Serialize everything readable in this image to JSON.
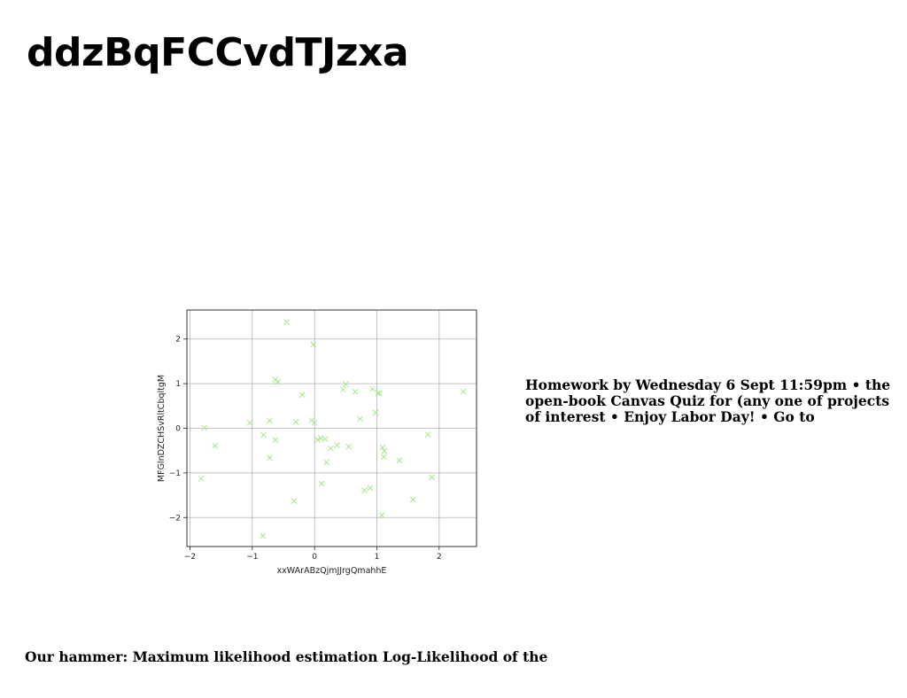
{
  "slide": {
    "title": "ddzBqFCCvdTJzxa",
    "side_text": "Homework by Wednesday 6 Sept 11:59pm • the open-book Canvas Quiz for (any one of projects of interest • Enjoy Labor Day! • Go to",
    "bottom_text": "Our hammer: Maximum likelihood estimation Log-Likelihood of the"
  },
  "chart_data": {
    "type": "scatter",
    "title": "",
    "xlabel": "xxWArABzQjmJJrgQmahhE",
    "ylabel": "MFGlnDZCHSvRltCbqltgM",
    "xlim": [
      -2.05,
      2.6
    ],
    "ylim": [
      -2.65,
      2.65
    ],
    "xticks": [
      -2,
      -1,
      0,
      1,
      2
    ],
    "yticks": [
      -2,
      -1,
      0,
      1,
      2
    ],
    "grid": true,
    "marker": "x",
    "color": "#a6e68a",
    "points": [
      {
        "x": -0.45,
        "y": 2.38
      },
      {
        "x": -0.02,
        "y": 1.88
      },
      {
        "x": -0.63,
        "y": 1.09
      },
      {
        "x": -0.59,
        "y": 1.04
      },
      {
        "x": -0.2,
        "y": 0.75
      },
      {
        "x": 0.5,
        "y": 0.99
      },
      {
        "x": 0.46,
        "y": 0.87
      },
      {
        "x": 0.65,
        "y": 0.82
      },
      {
        "x": 0.93,
        "y": 0.88
      },
      {
        "x": 1.02,
        "y": 0.79
      },
      {
        "x": 1.04,
        "y": 0.78
      },
      {
        "x": 2.39,
        "y": 0.82
      },
      {
        "x": 0.98,
        "y": 0.35
      },
      {
        "x": 0.73,
        "y": 0.21
      },
      {
        "x": -1.77,
        "y": 0.01
      },
      {
        "x": -1.04,
        "y": 0.12
      },
      {
        "x": -0.72,
        "y": 0.17
      },
      {
        "x": -0.3,
        "y": 0.14
      },
      {
        "x": -0.05,
        "y": 0.18
      },
      {
        "x": 0.0,
        "y": 0.12
      },
      {
        "x": -0.82,
        "y": -0.15
      },
      {
        "x": -0.63,
        "y": -0.26
      },
      {
        "x": 0.05,
        "y": -0.26
      },
      {
        "x": 0.1,
        "y": -0.22
      },
      {
        "x": 0.17,
        "y": -0.24
      },
      {
        "x": -1.6,
        "y": -0.39
      },
      {
        "x": 0.26,
        "y": -0.45
      },
      {
        "x": 0.36,
        "y": -0.38
      },
      {
        "x": 0.55,
        "y": -0.41
      },
      {
        "x": 1.09,
        "y": -0.43
      },
      {
        "x": 1.12,
        "y": -0.51
      },
      {
        "x": -0.72,
        "y": -0.66
      },
      {
        "x": 0.19,
        "y": -0.76
      },
      {
        "x": 1.11,
        "y": -0.64
      },
      {
        "x": 1.36,
        "y": -0.72
      },
      {
        "x": 1.82,
        "y": -0.14
      },
      {
        "x": 0.11,
        "y": -1.24
      },
      {
        "x": 0.8,
        "y": -1.39
      },
      {
        "x": 0.89,
        "y": -1.34
      },
      {
        "x": 1.88,
        "y": -1.1
      },
      {
        "x": -1.82,
        "y": -1.13
      },
      {
        "x": -0.33,
        "y": -1.63
      },
      {
        "x": 1.58,
        "y": -1.6
      },
      {
        "x": 1.08,
        "y": -1.95
      },
      {
        "x": -0.83,
        "y": -2.41
      }
    ]
  }
}
